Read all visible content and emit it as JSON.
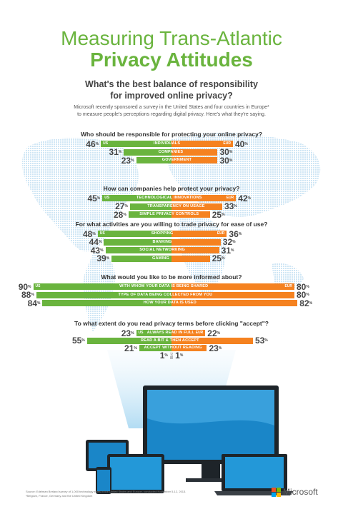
{
  "title_line1": "Measuring Trans-Atlantic",
  "title_line2": "Privacy Attitudes",
  "subtitle_line1": "What's the best balance of responsibility",
  "subtitle_line2": "for improved online privacy?",
  "intro_line1": "Microsoft recently sponsored a survey in the United States and four countries in Europe*",
  "intro_line2": "to measure people's perceptions regarding digital privacy. Here's what they're saying.",
  "us_tag": "US",
  "eur_tag": "EUR",
  "pct": "%",
  "colors": {
    "us": "#6ab43e",
    "eur": "#f58220",
    "neutral": "#b9bcc0"
  },
  "chart_data": [
    {
      "type": "bar",
      "title": "Who should be responsible for protecting your online privacy?",
      "categories": [
        "INDIVIDUALS",
        "COMPANIES",
        "GOVERNMENT"
      ],
      "series": [
        {
          "name": "US",
          "values": [
            46,
            31,
            23
          ]
        },
        {
          "name": "EUR",
          "values": [
            40,
            30,
            30
          ]
        }
      ]
    },
    {
      "type": "bar",
      "title": "How can companies help protect your privacy?",
      "categories": [
        "TECHNOLOGICAL INNOVATIONS",
        "TRANSPARENCY ON USAGE",
        "SIMPLE PRIVACY CONTROLS"
      ],
      "series": [
        {
          "name": "US",
          "values": [
            45,
            27,
            28
          ]
        },
        {
          "name": "EUR",
          "values": [
            42,
            33,
            25
          ]
        }
      ]
    },
    {
      "type": "bar",
      "title": "For what activities are you willing to trade privacy for ease of use?",
      "categories": [
        "SHOPPING",
        "BANKING",
        "SOCIAL NETWORKING",
        "GAMING"
      ],
      "series": [
        {
          "name": "US",
          "values": [
            48,
            44,
            43,
            39
          ]
        },
        {
          "name": "EUR",
          "values": [
            36,
            32,
            31,
            25
          ]
        }
      ]
    },
    {
      "type": "bar",
      "title": "What would you like to be more informed about?",
      "categories": [
        "WITH WHOM YOUR DATA IS BEING SHARED",
        "TYPE OF DATA BEING COLLECTED FROM YOU",
        "HOW YOUR DATA IS USED"
      ],
      "series": [
        {
          "name": "US",
          "values": [
            90,
            88,
            84
          ]
        },
        {
          "name": "EUR",
          "values": [
            80,
            80,
            82
          ]
        }
      ]
    },
    {
      "type": "bar",
      "title": "To what extent do you read privacy terms before clicking \"accept\"?",
      "categories": [
        "ALWAYS READ IN FULL",
        "READ A BIT & THEN ACCEPT",
        "ACCEPT WITHOUT READING",
        "DO NOT ACCEPT TERMS"
      ],
      "series": [
        {
          "name": "US",
          "values": [
            23,
            55,
            21,
            1
          ]
        },
        {
          "name": "EUR",
          "values": [
            22,
            53,
            23,
            1
          ]
        }
      ]
    }
  ],
  "footer_line1": "Source: Edelman Berland survey of 1,000 technology elites in the United States and Europe, conducted November 5-12, 2013.",
  "footer_line2": "*Belgium, France, Germany and the United Kingdom",
  "brand": "Microsoft"
}
